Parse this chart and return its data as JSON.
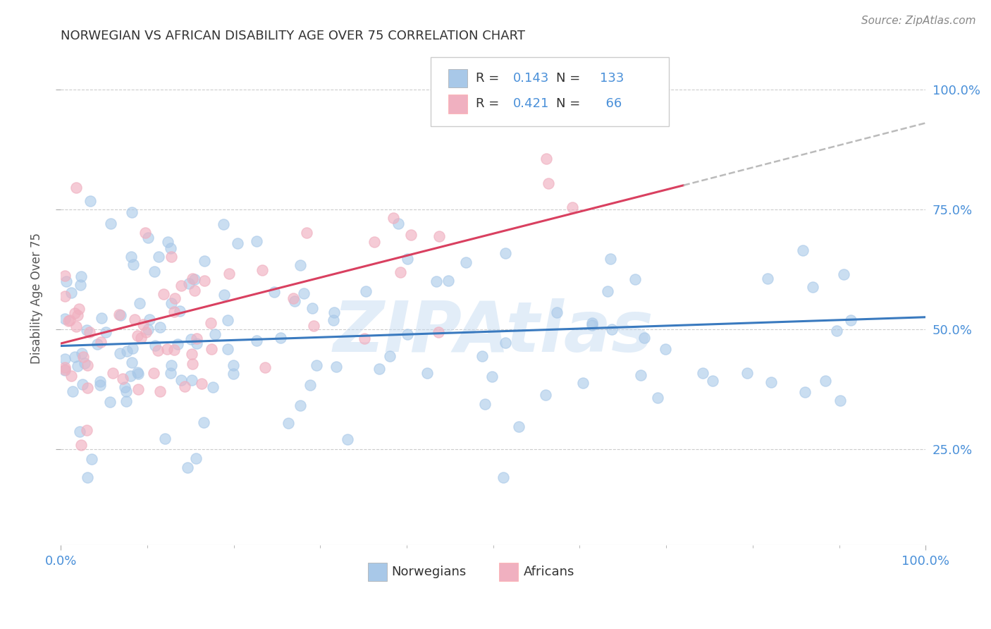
{
  "title": "NORWEGIAN VS AFRICAN DISABILITY AGE OVER 75 CORRELATION CHART",
  "source": "Source: ZipAtlas.com",
  "ylabel": "Disability Age Over 75",
  "xlim": [
    0,
    100
  ],
  "ylim": [
    5,
    108
  ],
  "norwegian_R": 0.143,
  "norwegian_N": 133,
  "african_R": 0.421,
  "african_N": 66,
  "norwegian_color": "#a8c8e8",
  "african_color": "#f0b0c0",
  "trend_norwegian_color": "#3a7abf",
  "trend_african_color": "#d94060",
  "watermark": "ZIPAtlas",
  "background_color": "#ffffff",
  "grid_color": "#cccccc",
  "title_color": "#333333",
  "axis_label_color": "#4a90d9",
  "ytick_values": [
    25,
    50,
    75,
    100
  ],
  "nor_trend_x0": 0,
  "nor_trend_y0": 46.5,
  "nor_trend_x1": 100,
  "nor_trend_y1": 52.5,
  "afr_trend_x0": 0,
  "afr_trend_y0": 47.0,
  "afr_trend_x1": 72,
  "afr_trend_y1": 80.0,
  "afr_dash_x0": 72,
  "afr_dash_y0": 80.0,
  "afr_dash_x1": 100,
  "afr_dash_y1": 93.0
}
